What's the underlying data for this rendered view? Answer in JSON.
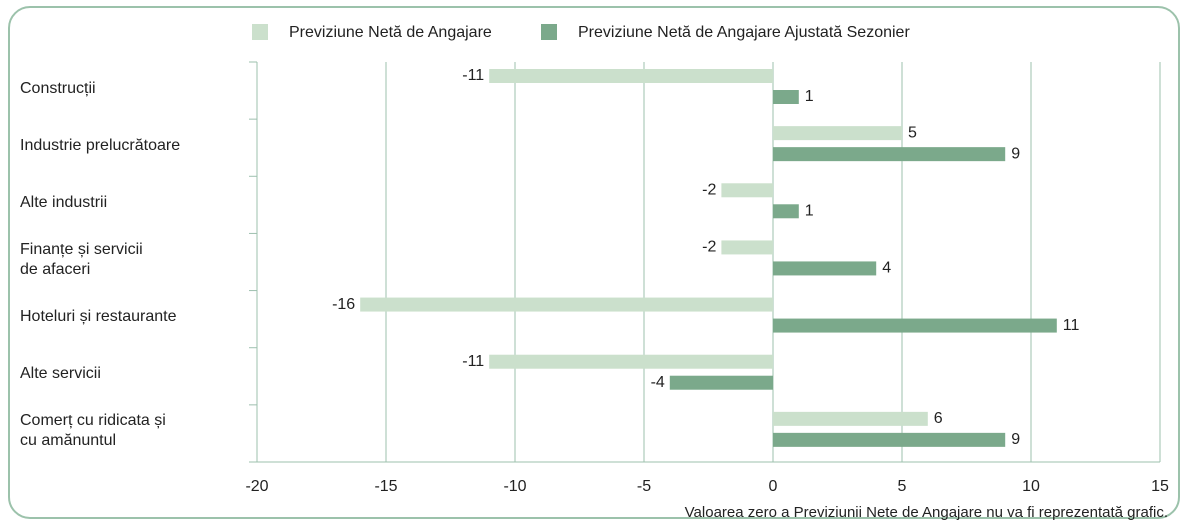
{
  "chart_data": {
    "type": "hbar",
    "categories": [
      "Construcții",
      "Industrie prelucrătoare",
      "Alte industrii",
      "Finanțe și servicii\nde afaceri",
      "Hoteluri și restaurante",
      "Alte servicii",
      "Comerț cu ridicata și\ncu amănuntul"
    ],
    "series": [
      {
        "name": "Previziune Netă de Angajare",
        "color": "#cbe0cc",
        "values": [
          -11,
          5,
          -2,
          -2,
          -16,
          -11,
          6
        ]
      },
      {
        "name": "Previziune Netă de Angajare Ajustată Sezonier",
        "color": "#7ba98b",
        "values": [
          1,
          9,
          1,
          4,
          11,
          -4,
          9
        ]
      }
    ],
    "xlim": [
      -20,
      15
    ],
    "xticks": [
      -20,
      -15,
      -10,
      -5,
      0,
      5,
      10,
      15
    ],
    "grid": true,
    "legend": "top",
    "footnote": "Valoarea zero a Previziunii Nete de Angajare nu va fi reprezentată grafic."
  }
}
